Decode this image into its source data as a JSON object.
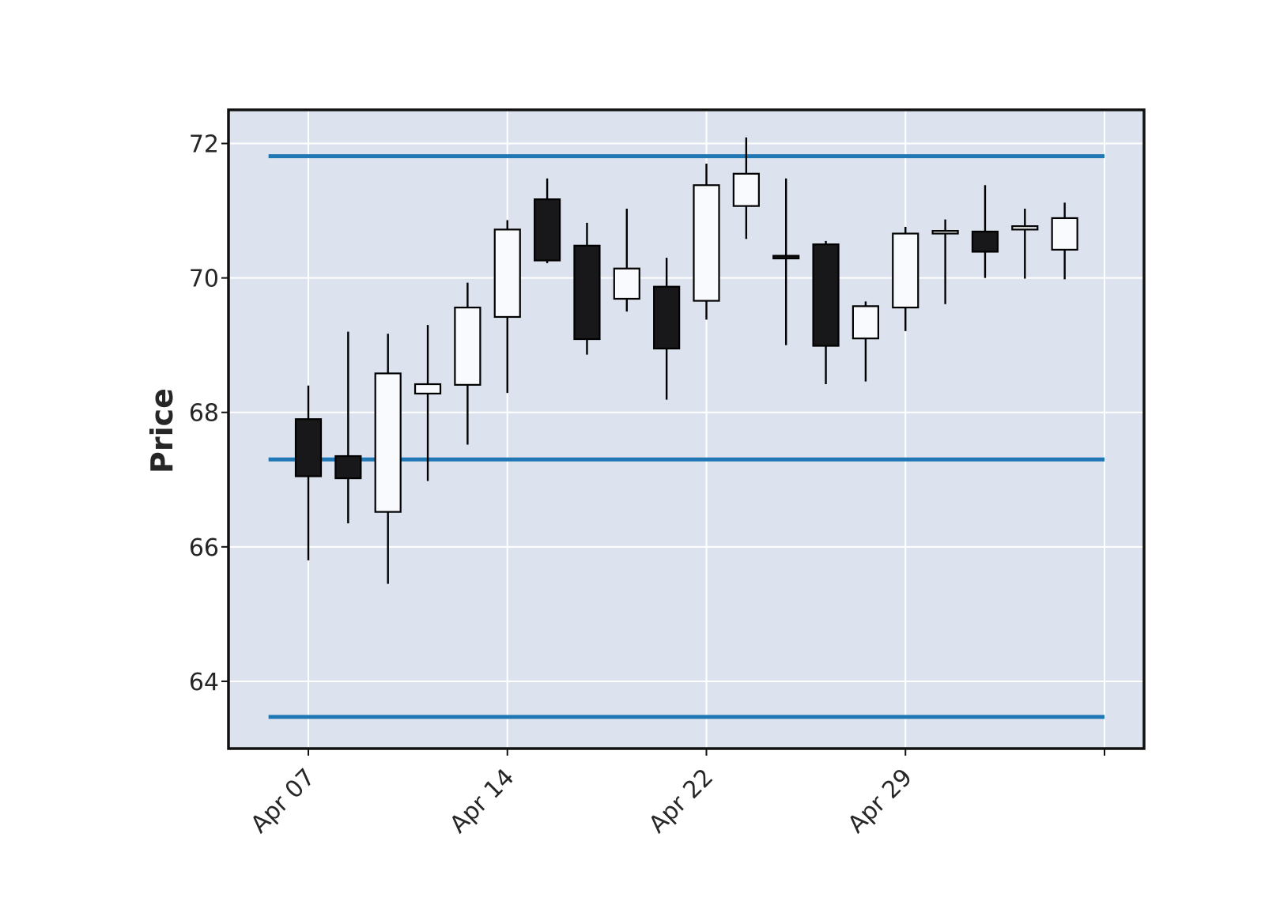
{
  "chart_data": {
    "type": "candlestick",
    "title": "",
    "xlabel": "",
    "ylabel": "Price",
    "ylim": [
      63,
      72.5
    ],
    "grid": true,
    "legend": "none",
    "colors": {
      "background": "#dde3ee",
      "grid": "#ffffff",
      "up_fill": "#f8fafd",
      "down_fill": "#18181a",
      "edge": "#000000",
      "hline": "#1f77b4",
      "frame": "#111111"
    },
    "yticks": [
      64,
      66,
      68,
      70,
      72
    ],
    "ytick_labels": [
      "64",
      "66",
      "68",
      "70",
      "72"
    ],
    "xticks": [
      {
        "index": 0,
        "label": "Apr 07"
      },
      {
        "index": 5,
        "label": "Apr 14"
      },
      {
        "index": 10,
        "label": "Apr 22"
      },
      {
        "index": 15,
        "label": "Apr 29"
      },
      {
        "index": 20,
        "label": ""
      }
    ],
    "candles": [
      {
        "open": 67.9,
        "high": 68.4,
        "low": 65.8,
        "close": 67.05
      },
      {
        "open": 67.35,
        "high": 69.2,
        "low": 66.35,
        "close": 67.02
      },
      {
        "open": 66.52,
        "high": 69.17,
        "low": 65.45,
        "close": 68.58
      },
      {
        "open": 68.28,
        "high": 69.3,
        "low": 66.98,
        "close": 68.42
      },
      {
        "open": 68.41,
        "high": 69.93,
        "low": 67.52,
        "close": 69.56
      },
      {
        "open": 69.42,
        "high": 70.86,
        "low": 68.29,
        "close": 70.72
      },
      {
        "open": 71.17,
        "high": 71.48,
        "low": 70.22,
        "close": 70.26
      },
      {
        "open": 70.48,
        "high": 70.82,
        "low": 68.86,
        "close": 69.09
      },
      {
        "open": 69.69,
        "high": 71.03,
        "low": 69.5,
        "close": 70.14
      },
      {
        "open": 69.87,
        "high": 70.3,
        "low": 68.19,
        "close": 68.95
      },
      {
        "open": 69.66,
        "high": 71.7,
        "low": 69.38,
        "close": 71.38
      },
      {
        "open": 71.07,
        "high": 72.09,
        "low": 70.58,
        "close": 71.55
      },
      {
        "open": 70.33,
        "high": 71.48,
        "low": 69.0,
        "close": 70.29
      },
      {
        "open": 70.5,
        "high": 70.55,
        "low": 68.42,
        "close": 68.99
      },
      {
        "open": 69.1,
        "high": 69.65,
        "low": 68.46,
        "close": 69.58
      },
      {
        "open": 69.56,
        "high": 70.76,
        "low": 69.21,
        "close": 70.66
      },
      {
        "open": 70.66,
        "high": 70.87,
        "low": 69.61,
        "close": 70.7
      },
      {
        "open": 70.69,
        "high": 71.38,
        "low": 70.0,
        "close": 70.39
      },
      {
        "open": 70.72,
        "high": 71.03,
        "low": 69.99,
        "close": 70.77
      },
      {
        "open": 70.42,
        "high": 71.12,
        "low": 69.98,
        "close": 70.89
      }
    ],
    "hlines": [
      71.81,
      67.3,
      63.47
    ]
  }
}
